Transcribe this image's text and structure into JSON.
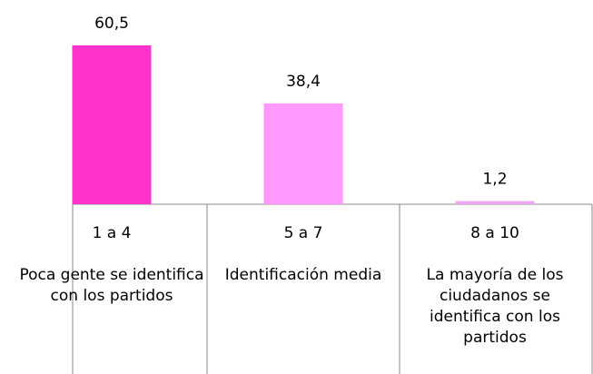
{
  "chart_data": {
    "type": "bar",
    "categories": [
      "1 a 4",
      "5 a 7",
      "8 a 10"
    ],
    "descriptions": [
      "Poca gente se identifica con los partidos",
      "Identificación media",
      "La mayoría de los ciudadanos se identifica con los partidos"
    ],
    "values": [
      60.5,
      38.4,
      1.2
    ],
    "value_labels": [
      "60,5",
      "38,4",
      "1,2"
    ],
    "colors": [
      "#ff33cc",
      "#ff99ff",
      "#f0a6f0"
    ]
  }
}
